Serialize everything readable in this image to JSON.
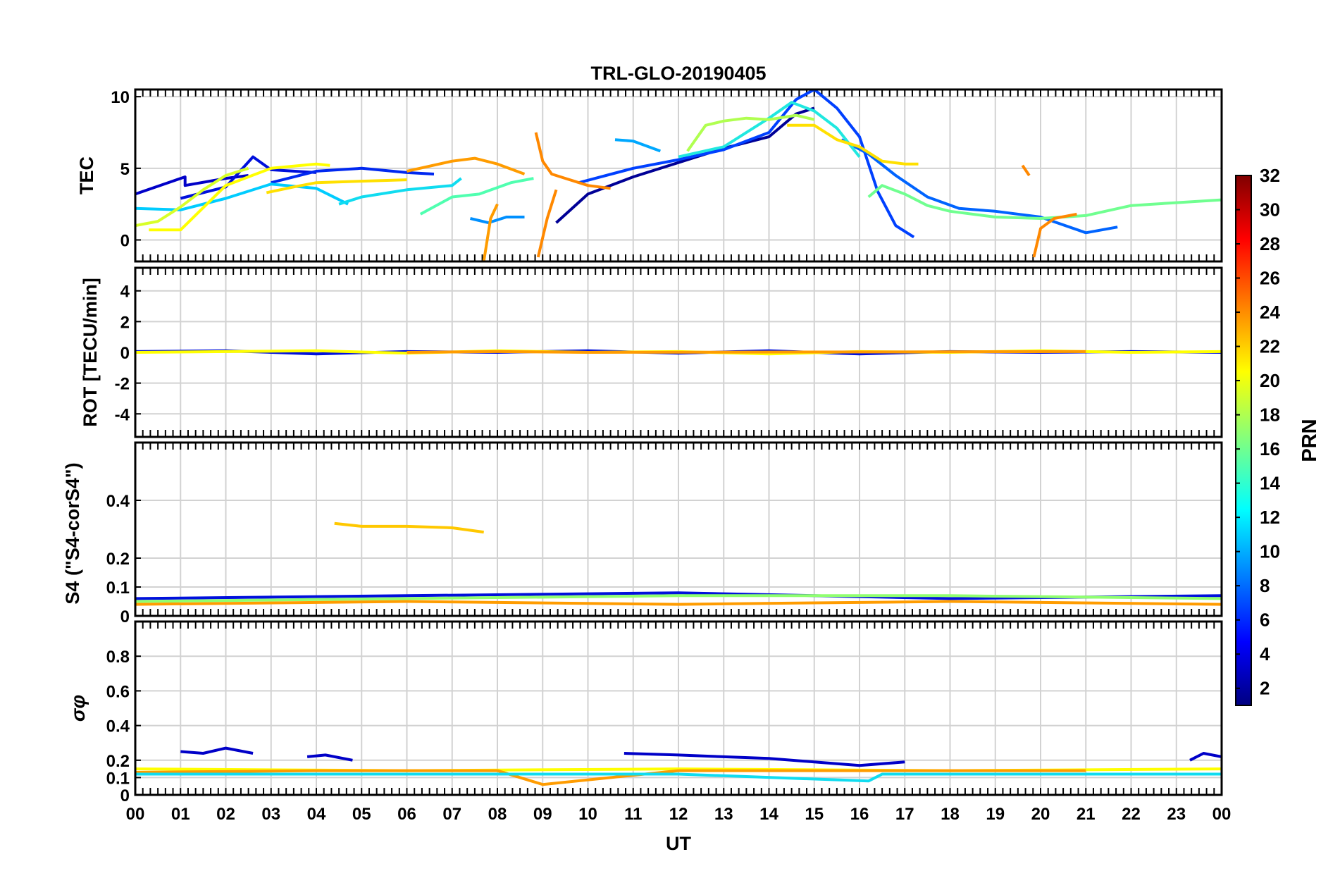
{
  "chart_data": {
    "type": "line",
    "title": "TRL-GLO-20190405",
    "xlabel": "UT",
    "x_ticks": [
      "00",
      "01",
      "02",
      "03",
      "04",
      "05",
      "06",
      "07",
      "08",
      "09",
      "10",
      "11",
      "12",
      "13",
      "14",
      "15",
      "16",
      "17",
      "18",
      "19",
      "20",
      "21",
      "22",
      "23",
      "00"
    ],
    "xlim": [
      0,
      24
    ],
    "colorbar": {
      "label": "PRN",
      "range": [
        1,
        32
      ],
      "ticks": [
        "2",
        "4",
        "6",
        "8",
        "10",
        "12",
        "14",
        "16",
        "18",
        "20",
        "22",
        "24",
        "26",
        "28",
        "30",
        "32"
      ],
      "colormap": "jet"
    },
    "panels": [
      {
        "ylabel": "TEC",
        "ylim": [
          -1.5,
          10.5
        ],
        "yticks": [
          "0",
          "5",
          "10"
        ],
        "series": [
          {
            "prn": 2,
            "color": "#0000c8",
            "x": [
              0.0,
              1.1,
              1.1,
              2.0,
              2.5
            ],
            "y": [
              3.2,
              4.4,
              3.8,
              4.3,
              4.5
            ]
          },
          {
            "prn": 3,
            "color": "#0010dc",
            "x": [
              1.0,
              2.0,
              2.6,
              3.0,
              4.0
            ],
            "y": [
              2.9,
              3.7,
              5.8,
              4.9,
              4.7
            ]
          },
          {
            "prn": 4,
            "color": "#0028f0",
            "x": [
              3.0,
              4.0,
              5.0,
              6.0,
              6.6
            ],
            "y": [
              4.0,
              4.8,
              5.0,
              4.7,
              4.6
            ]
          },
          {
            "prn": 1,
            "color": "#000096",
            "x": [
              9.3,
              10.0,
              11.0,
              12.0,
              13.0,
              14.0,
              14.6,
              15.0
            ],
            "y": [
              1.2,
              3.2,
              4.4,
              5.4,
              6.4,
              7.2,
              8.8,
              9.2
            ]
          },
          {
            "prn": 5,
            "color": "#0040ff",
            "x": [
              9.8,
              11.0,
              12.0,
              13.0,
              14.0,
              14.6,
              15.0,
              15.5,
              16.0,
              16.4,
              16.8,
              17.2
            ],
            "y": [
              4.0,
              5.0,
              5.6,
              6.3,
              7.5,
              9.8,
              10.5,
              9.2,
              7.2,
              3.4,
              1.0,
              0.2
            ]
          },
          {
            "prn": 6,
            "color": "#0064ff",
            "x": [
              15.6,
              16.2,
              16.8,
              17.5,
              18.2,
              19.0,
              20.0,
              21.0,
              21.7
            ],
            "y": [
              7.0,
              6.0,
              4.5,
              3.0,
              2.2,
              2.0,
              1.6,
              0.5,
              0.9
            ]
          },
          {
            "prn": 8,
            "color": "#0090ff",
            "x": [
              7.4,
              7.8,
              8.2,
              8.6
            ],
            "y": [
              1.5,
              1.2,
              1.6,
              1.6
            ]
          },
          {
            "prn": 9,
            "color": "#00a8ff",
            "x": [
              10.6,
              11.0,
              11.6
            ],
            "y": [
              7.0,
              6.9,
              6.2
            ]
          },
          {
            "prn": 11,
            "color": "#00ccff",
            "x": [
              0.0,
              1.0,
              2.0,
              3.0,
              4.0,
              4.7
            ],
            "y": [
              2.2,
              2.1,
              2.9,
              3.9,
              3.6,
              2.5
            ]
          },
          {
            "prn": 12,
            "color": "#10dcf0",
            "x": [
              4.5,
              5.0,
              6.0,
              7.0,
              7.2
            ],
            "y": [
              2.5,
              3.0,
              3.5,
              3.8,
              4.3
            ]
          },
          {
            "prn": 13,
            "color": "#20e8e0",
            "x": [
              12.0,
              13.0,
              14.0,
              14.5,
              15.0,
              15.5,
              16.0
            ],
            "y": [
              5.8,
              6.5,
              8.5,
              9.6,
              9.0,
              7.8,
              5.8
            ]
          },
          {
            "prn": 15,
            "color": "#50ffb0",
            "x": [
              6.3,
              7.0,
              7.6,
              8.3,
              8.8
            ],
            "y": [
              1.8,
              3.0,
              3.2,
              4.0,
              4.3
            ]
          },
          {
            "prn": 16,
            "color": "#70ff90",
            "x": [
              16.2,
              16.5,
              17.0,
              17.5,
              18.0,
              19.0,
              20.0,
              21.0,
              22.0,
              23.0,
              24.0
            ],
            "y": [
              3.0,
              3.8,
              3.2,
              2.4,
              2.0,
              1.6,
              1.5,
              1.7,
              2.4,
              2.6,
              2.8
            ]
          },
          {
            "prn": 18,
            "color": "#b0ff50",
            "x": [
              12.2,
              12.6,
              13.0,
              13.5,
              14.0,
              14.6,
              15.0
            ],
            "y": [
              6.2,
              8.0,
              8.3,
              8.5,
              8.4,
              8.7,
              8.4
            ]
          },
          {
            "prn": 19,
            "color": "#d8ff28",
            "x": [
              0.0,
              0.5,
              1.0,
              1.5,
              2.0,
              2.5
            ],
            "y": [
              1.0,
              1.3,
              2.3,
              3.5,
              4.5,
              5.0
            ]
          },
          {
            "prn": 20,
            "color": "#ffff00",
            "x": [
              0.3,
              1.0,
              2.0,
              3.0,
              4.0,
              4.3
            ],
            "y": [
              0.7,
              0.7,
              3.8,
              5.0,
              5.3,
              5.2
            ]
          },
          {
            "prn": 21,
            "color": "#ffe000",
            "x": [
              2.9,
              3.5,
              4.0,
              5.0,
              6.0
            ],
            "y": [
              3.3,
              3.7,
              4.0,
              4.1,
              4.2
            ]
          },
          {
            "prn": 21,
            "color": "#ffe000",
            "x": [
              14.4,
              15.0,
              15.5,
              16.0,
              16.5,
              17.0,
              17.3
            ],
            "y": [
              8.0,
              8.0,
              7.0,
              6.5,
              5.5,
              5.3,
              5.3
            ]
          },
          {
            "prn": 23,
            "color": "#ff9c00",
            "x": [
              6.0,
              7.0,
              7.5,
              8.0,
              8.6
            ],
            "y": [
              4.8,
              5.5,
              5.7,
              5.3,
              4.6
            ]
          },
          {
            "prn": 24,
            "color": "#ff8800",
            "x": [
              8.85,
              9.0,
              9.2,
              9.5,
              10.0,
              10.5
            ],
            "y": [
              7.5,
              5.5,
              4.6,
              4.3,
              3.8,
              3.6
            ]
          },
          {
            "prn": 24,
            "color": "#ff8800",
            "x": [
              8.9,
              9.1,
              9.3
            ],
            "y": [
              -1.2,
              1.5,
              3.5
            ]
          },
          {
            "prn": 23,
            "color": "#ff9c00",
            "x": [
              7.7,
              7.85,
              8.0
            ],
            "y": [
              -1.5,
              1.5,
              2.5
            ]
          },
          {
            "prn": 24,
            "color": "#ff8800",
            "x": [
              19.6,
              19.75
            ],
            "y": [
              5.2,
              4.5
            ]
          },
          {
            "prn": 24,
            "color": "#ff8800",
            "x": [
              19.85,
              20.0,
              20.3,
              20.8
            ],
            "y": [
              -1.2,
              0.8,
              1.5,
              1.8
            ]
          }
        ]
      },
      {
        "ylabel": "ROT [TECU/min]",
        "ylim": [
          -5.5,
          5.5
        ],
        "yticks": [
          "-4",
          "-2",
          "0",
          "2",
          "4"
        ],
        "series": [
          {
            "prn": 3,
            "color": "#0010dc",
            "x": [
              0,
              2,
              4,
              6,
              8,
              10,
              12,
              14,
              16,
              18,
              20,
              22,
              24
            ],
            "y": [
              0.05,
              0.1,
              -0.1,
              0.05,
              0.0,
              0.1,
              -0.05,
              0.1,
              -0.1,
              0.05,
              0.0,
              0.05,
              0.0
            ]
          },
          {
            "prn": 20,
            "color": "#ffff00",
            "x": [
              0,
              2,
              4,
              6,
              8,
              10,
              12,
              14,
              16,
              18,
              20,
              22,
              24
            ],
            "y": [
              0.0,
              0.05,
              0.1,
              -0.05,
              0.1,
              0.0,
              0.05,
              -0.1,
              0.05,
              0.0,
              0.1,
              0.0,
              0.05
            ]
          },
          {
            "prn": 23,
            "color": "#ff9c00",
            "x": [
              6,
              8,
              10,
              21
            ],
            "y": [
              0.0,
              0.05,
              0.0,
              0.05
            ]
          }
        ]
      },
      {
        "ylabel": "S4 (\"S4-corS4\")",
        "ylim": [
          0,
          0.6
        ],
        "yticks": [
          "0",
          "0.1",
          "0.2",
          "0.4"
        ],
        "series": [
          {
            "prn": 22,
            "color": "#ffc800",
            "x": [
              4.4,
              5.0,
              6.0,
              7.0,
              7.7
            ],
            "y": [
              0.32,
              0.31,
              0.31,
              0.305,
              0.29
            ]
          },
          {
            "prn": 3,
            "color": "#0010dc",
            "x": [
              0,
              6,
              12,
              18,
              24
            ],
            "y": [
              0.06,
              0.07,
              0.08,
              0.06,
              0.07
            ]
          },
          {
            "prn": 17,
            "color": "#90ff70",
            "x": [
              0,
              6,
              12,
              18,
              24
            ],
            "y": [
              0.05,
              0.06,
              0.07,
              0.07,
              0.06
            ]
          },
          {
            "prn": 23,
            "color": "#ff9c00",
            "x": [
              0,
              6,
              12,
              18,
              24
            ],
            "y": [
              0.04,
              0.05,
              0.04,
              0.05,
              0.04
            ]
          }
        ]
      },
      {
        "ylabel": "σφ",
        "ylim": [
          0,
          1.0
        ],
        "yticks": [
          "0",
          "0.1",
          "0.2",
          "0.4",
          "0.6",
          "0.8"
        ],
        "series": [
          {
            "prn": 2,
            "color": "#0000c8",
            "x": [
              1.0,
              1.5,
              2.0,
              2.6
            ],
            "y": [
              0.25,
              0.24,
              0.27,
              0.24
            ]
          },
          {
            "prn": 2,
            "color": "#0000c8",
            "x": [
              3.8,
              4.2,
              4.8
            ],
            "y": [
              0.22,
              0.23,
              0.2
            ]
          },
          {
            "prn": 2,
            "color": "#0000c8",
            "x": [
              10.8,
              12.0,
              13.0,
              14.0,
              15.0,
              16.0,
              17.0
            ],
            "y": [
              0.24,
              0.23,
              0.22,
              0.21,
              0.19,
              0.17,
              0.19
            ]
          },
          {
            "prn": 2,
            "color": "#0000c8",
            "x": [
              23.3,
              23.6,
              24.0
            ],
            "y": [
              0.2,
              0.24,
              0.22
            ]
          },
          {
            "prn": 20,
            "color": "#ffff00",
            "x": [
              0,
              6,
              12,
              18,
              24
            ],
            "y": [
              0.15,
              0.14,
              0.15,
              0.14,
              0.15
            ]
          },
          {
            "prn": 23,
            "color": "#ff9c00",
            "x": [
              0,
              4,
              8,
              9,
              12,
              16,
              21
            ],
            "y": [
              0.13,
              0.14,
              0.14,
              0.06,
              0.14,
              0.14,
              0.14
            ]
          },
          {
            "prn": 12,
            "color": "#10dcf0",
            "x": [
              0,
              6,
              12,
              16.2,
              16.5,
              24
            ],
            "y": [
              0.12,
              0.12,
              0.12,
              0.08,
              0.12,
              0.12
            ]
          }
        ]
      }
    ]
  }
}
